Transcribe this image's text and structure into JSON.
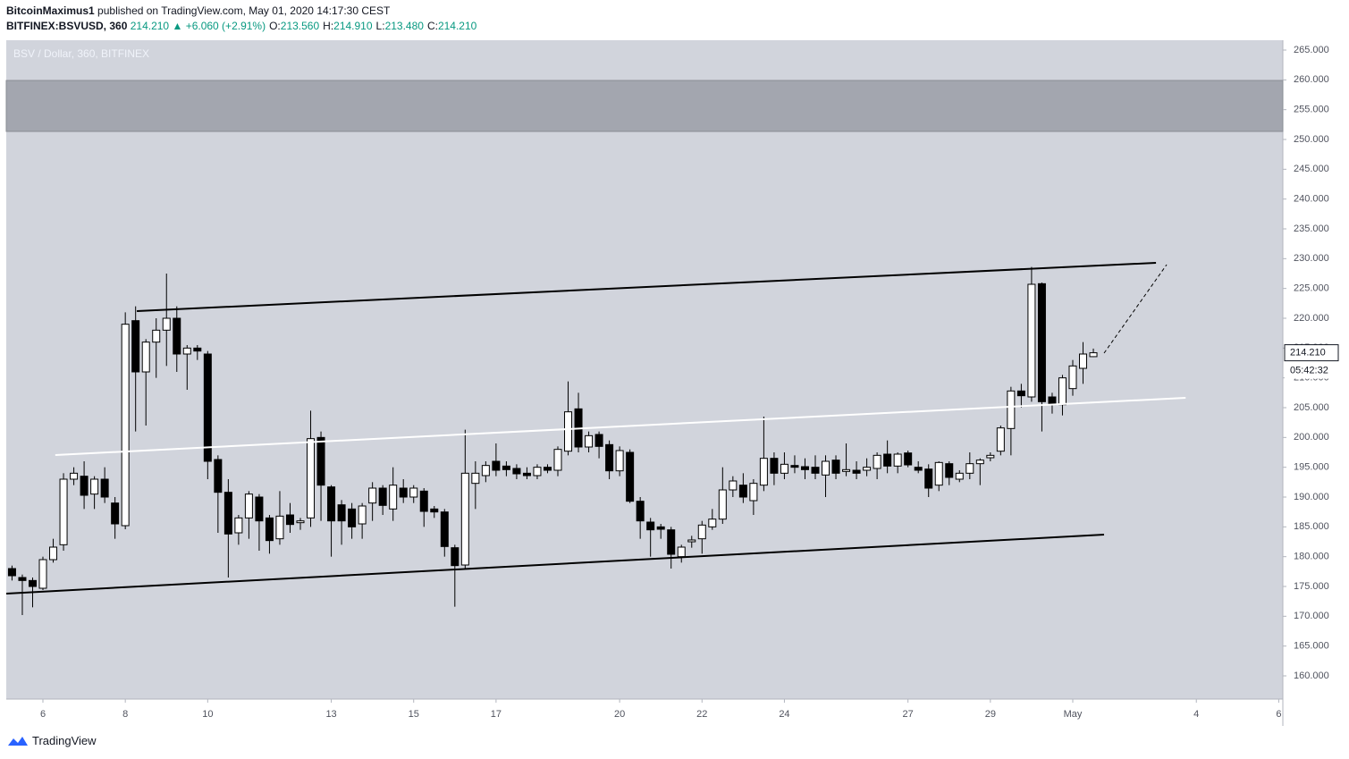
{
  "header": {
    "author": "BitcoinMaximus1",
    "published": "published on TradingView.com, May 01, 2020 14:17:30 CEST",
    "symbol": "BITFINEX:BSVUSD, 360",
    "price": "214.210",
    "arrow": "▲",
    "change": "+6.060 (+2.91%)",
    "ohlc": [
      {
        "key": "O:",
        "value": "213.560"
      },
      {
        "key": "H:",
        "value": "214.910"
      },
      {
        "key": "L:",
        "value": "213.480"
      },
      {
        "key": "C:",
        "value": "214.210"
      }
    ]
  },
  "footer": {
    "brand": "TradingView"
  },
  "chart_data": {
    "type": "candlestick",
    "title": "BSV / Dollar, 360, BITFINEX",
    "x": [
      5.25,
      5.5,
      5.75,
      6,
      6.25,
      6.5,
      6.75,
      7,
      7.25,
      7.5,
      7.75,
      8,
      8.25,
      8.5,
      8.75,
      9,
      9.25,
      9.5,
      9.75,
      10,
      10.25,
      10.5,
      10.75,
      11,
      11.25,
      11.5,
      11.75,
      12,
      12.25,
      12.5,
      12.75,
      13,
      13.25,
      13.5,
      13.75,
      14,
      14.25,
      14.5,
      14.75,
      15,
      15.25,
      15.5,
      15.75,
      16,
      16.25,
      16.5,
      16.75,
      17,
      17.25,
      17.5,
      17.75,
      18,
      18.25,
      18.5,
      18.75,
      19,
      19.25,
      19.5,
      19.75,
      20,
      20.25,
      20.5,
      20.75,
      21,
      21.25,
      21.5,
      21.75,
      22,
      22.25,
      22.5,
      22.75,
      23,
      23.25,
      23.5,
      23.75,
      24,
      24.25,
      24.5,
      24.75,
      25,
      25.25,
      25.5,
      25.75,
      26,
      26.25,
      26.5,
      26.75,
      27,
      27.25,
      27.5,
      27.75,
      28,
      28.25,
      28.5,
      28.75,
      29,
      29.25,
      29.5,
      29.75,
      30,
      30.25,
      30.5,
      30.75,
      31,
      31.25,
      31.5
    ],
    "open": [
      178,
      176.5,
      176,
      174.7,
      179.5,
      182,
      193,
      193.5,
      190.5,
      193,
      189,
      185.2,
      219.6,
      211,
      216,
      218,
      220,
      214,
      215,
      214,
      196.3,
      190.8,
      184,
      186.5,
      190,
      186.5,
      183,
      187,
      185.7,
      186.5,
      200,
      191.7,
      188.7,
      188,
      185.5,
      189,
      191.5,
      188,
      191.5,
      190,
      191,
      188,
      187.5,
      181.5,
      178.6,
      192.3,
      193.6,
      196,
      195.2,
      194.8,
      194,
      193.6,
      195,
      194.5,
      197.7,
      204.8,
      198.4,
      200.5,
      198.8,
      194.4,
      197.5,
      189.3,
      185.8,
      185,
      184.5,
      180,
      182.5,
      183,
      185,
      186.3,
      191.2,
      192,
      189.4,
      192,
      196.5,
      194,
      195.3,
      195.1,
      195,
      193.7,
      196.2,
      194.3,
      194.5,
      194.5,
      194.8,
      197.2,
      195.2,
      197.4,
      195,
      194.7,
      192,
      195.6,
      193,
      194,
      195.6,
      196.6,
      197.7,
      201.5,
      207.8,
      206.8,
      225.8,
      206.8,
      205.5,
      208.2,
      211.6,
      213.56
    ],
    "high": [
      178.5,
      177,
      176.5,
      180,
      183,
      194,
      195,
      196,
      193.5,
      195,
      190,
      221,
      222,
      216.5,
      220,
      227.5,
      222,
      215.5,
      215.5,
      214.5,
      197,
      193,
      187,
      191,
      190.5,
      187,
      191,
      189,
      186.5,
      204.5,
      201,
      192,
      189.5,
      189,
      189,
      192.5,
      192,
      195,
      193,
      192,
      191.5,
      188.5,
      188,
      182,
      201.3,
      196,
      196,
      199,
      196,
      195.5,
      195,
      195.5,
      195.5,
      198.5,
      209.4,
      207.5,
      201,
      201,
      199.5,
      198.5,
      198,
      190,
      186.5,
      185.5,
      185,
      182,
      183.5,
      186,
      188,
      195,
      193.5,
      194,
      193,
      203.5,
      197.5,
      197.5,
      197,
      196.5,
      197,
      197,
      197,
      199,
      196,
      196.5,
      197.5,
      199.5,
      197.5,
      197.8,
      196,
      195.5,
      196,
      196,
      194.5,
      197.5,
      196.5,
      197.5,
      202,
      208.5,
      209,
      228.6,
      226,
      207.5,
      210.5,
      213,
      216,
      214.91
    ],
    "low": [
      176,
      170.2,
      171.5,
      174.4,
      179,
      181,
      192,
      188,
      188,
      189,
      183,
      184.6,
      201,
      202,
      210,
      212,
      211,
      208,
      213,
      193,
      184,
      176.5,
      182,
      183,
      181,
      180.5,
      182,
      184,
      184.5,
      185,
      186,
      180,
      182,
      183,
      183,
      186,
      187,
      186,
      189,
      189,
      185,
      186.5,
      180,
      171.6,
      178,
      188,
      192.5,
      193.5,
      193.5,
      193,
      193,
      193,
      194,
      193.5,
      197,
      197.5,
      197.5,
      196.5,
      193,
      193.5,
      189,
      183,
      180,
      183,
      178,
      179,
      181.5,
      180.5,
      184.5,
      185.5,
      190,
      189,
      187,
      191,
      192,
      193,
      194,
      193,
      193,
      190,
      193,
      193.5,
      193,
      193.5,
      193,
      194,
      194,
      195,
      194,
      190,
      191,
      192,
      192.5,
      193,
      192,
      196,
      197,
      197,
      205,
      206,
      201,
      204,
      203.7,
      207,
      209,
      213.48
    ],
    "close": [
      176.8,
      176,
      175,
      179.5,
      181.6,
      193,
      194,
      190.3,
      193,
      190,
      185.5,
      219,
      211,
      216,
      218,
      220,
      214,
      215,
      214.5,
      196,
      190.8,
      183.8,
      186.5,
      190.5,
      186,
      182.7,
      186.8,
      185.4,
      186,
      199.8,
      192,
      186,
      186,
      185,
      188.5,
      191.5,
      188.6,
      192,
      190,
      191.5,
      187.6,
      187.5,
      181.7,
      178.5,
      194,
      194,
      195.3,
      194.5,
      194.6,
      193.9,
      193.6,
      195,
      194.5,
      198,
      204.3,
      198.4,
      200.3,
      198.5,
      194.4,
      197.8,
      189.3,
      186,
      184.5,
      184.6,
      180.4,
      181.6,
      182.8,
      185.3,
      186.3,
      191.2,
      192.7,
      190,
      192.3,
      196.5,
      194,
      195.5,
      195,
      194.6,
      194,
      196,
      194,
      194.6,
      194,
      195,
      197,
      195.2,
      197.2,
      195.4,
      194.5,
      191.5,
      195.8,
      193.3,
      194,
      195.6,
      196.2,
      197,
      201.6,
      207.8,
      207,
      225.7,
      206,
      205.5,
      210,
      212,
      214,
      214.21
    ],
    "up_color": "#ffffff",
    "down_color": "#000000",
    "wick_color": "#000000",
    "background": "#d1d4dc",
    "ylim": [
      156.1,
      266.65
    ],
    "yticks": [
      {
        "value": 160,
        "label": "160.000"
      },
      {
        "value": 165,
        "label": "165.000"
      },
      {
        "value": 170,
        "label": "170.000"
      },
      {
        "value": 175,
        "label": "175.000"
      },
      {
        "value": 180,
        "label": "180.000"
      },
      {
        "value": 185,
        "label": "185.000"
      },
      {
        "value": 190,
        "label": "190.000"
      },
      {
        "value": 195,
        "label": "195.000"
      },
      {
        "value": 200,
        "label": "200.000"
      },
      {
        "value": 205,
        "label": "205.000"
      },
      {
        "value": 210,
        "label": "210.000"
      },
      {
        "value": 215,
        "label": "215.000"
      },
      {
        "value": 220,
        "label": "220.000"
      },
      {
        "value": 225,
        "label": "225.000"
      },
      {
        "value": 230,
        "label": "230.000"
      },
      {
        "value": 235,
        "label": "235.000"
      },
      {
        "value": 240,
        "label": "240.000"
      },
      {
        "value": 245,
        "label": "245.000"
      },
      {
        "value": 250,
        "label": "250.000"
      },
      {
        "value": 255,
        "label": "255.000"
      },
      {
        "value": 260,
        "label": "260.000"
      },
      {
        "value": 265,
        "label": "265.000"
      }
    ],
    "xlim": [
      5.11,
      36.1
    ],
    "xticks": [
      6,
      8,
      10,
      13,
      15,
      17,
      20,
      22,
      24,
      27,
      29,
      {
        "value": 31,
        "label": "May"
      },
      {
        "value": 34,
        "label": "4"
      },
      {
        "value": 36,
        "label": "6"
      }
    ],
    "zones": [
      {
        "from": 251.35,
        "to": 259.9,
        "color": "#a3a6af"
      }
    ],
    "trendlines": [
      {
        "x": [
          8.28,
          33.02
        ],
        "y": [
          221.2,
          229.3
        ],
        "color": "#000000"
      },
      {
        "x": [
          6.3,
          33.74
        ],
        "y": [
          197.05,
          206.65
        ],
        "color": "#ffffff"
      },
      {
        "x": [
          5.11,
          31.76
        ],
        "y": [
          173.8,
          183.7
        ],
        "color": "#000000"
      },
      {
        "x": [
          31.76,
          33.28
        ],
        "y": [
          214.15,
          229
        ],
        "color": "#000000",
        "dashed": true
      }
    ],
    "last_price_label": "214.210",
    "countdown": "05:42:32"
  }
}
